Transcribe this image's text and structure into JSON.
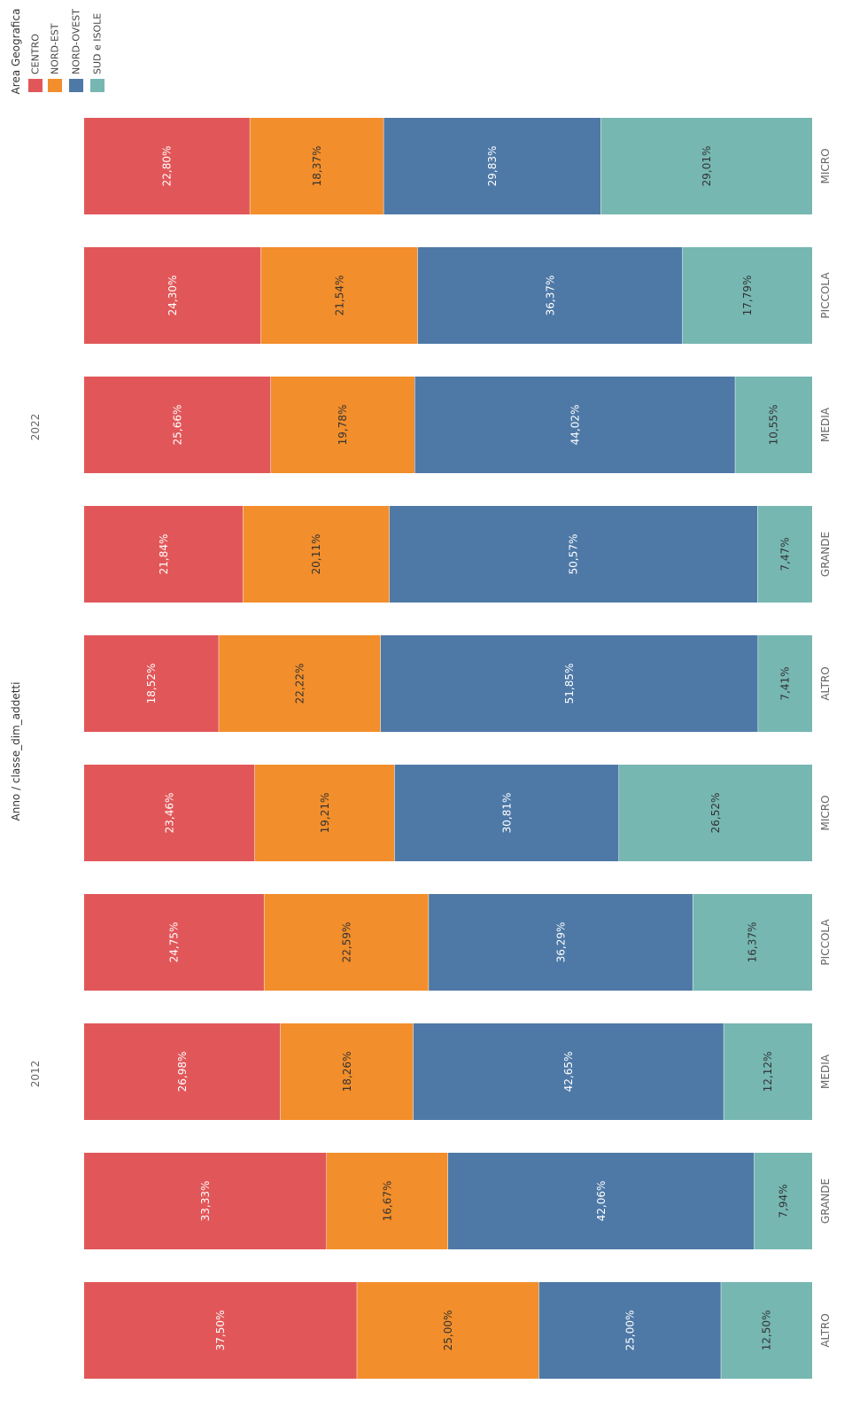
{
  "legend": {
    "title": "Area Geografica",
    "items": [
      {
        "label": "CENTRO",
        "color": "#e15759"
      },
      {
        "label": "NORD-EST",
        "color": "#f28e2b"
      },
      {
        "label": "NORD-OVEST",
        "color": "#4e79a7"
      },
      {
        "label": "SUD e ISOLE",
        "color": "#76b7b2"
      }
    ]
  },
  "chart_data": {
    "type": "bar",
    "stacked": true,
    "orientation": "rotated",
    "axis_title": "Anno  / classe_dim_addetti",
    "groups": [
      {
        "year": "2012",
        "categories": [
          "ALTRO",
          "GRANDE",
          "MEDIA",
          "PICCOLA",
          "MICRO"
        ]
      },
      {
        "year": "2022",
        "categories": [
          "ALTRO",
          "GRANDE",
          "MEDIA",
          "PICCOLA",
          "MICRO"
        ]
      }
    ],
    "series_order": [
      "CENTRO",
      "NORD-EST",
      "NORD-OVEST",
      "SUD e ISOLE"
    ],
    "bars": [
      {
        "year": "2012",
        "category": "ALTRO",
        "values": [
          37.5,
          25.0,
          25.0,
          12.5
        ],
        "labels": [
          "37,50%",
          "25,00%",
          "25,00%",
          "12,50%"
        ]
      },
      {
        "year": "2012",
        "category": "GRANDE",
        "values": [
          33.33,
          16.67,
          42.06,
          7.94
        ],
        "labels": [
          "33,33%",
          "16,67%",
          "42,06%",
          "7,94%"
        ]
      },
      {
        "year": "2012",
        "category": "MEDIA",
        "values": [
          26.98,
          18.26,
          42.65,
          12.12
        ],
        "labels": [
          "26,98%",
          "18,26%",
          "42,65%",
          "12,12%"
        ]
      },
      {
        "year": "2012",
        "category": "PICCOLA",
        "values": [
          24.75,
          22.59,
          36.29,
          16.37
        ],
        "labels": [
          "24,75%",
          "22,59%",
          "36,29%",
          "16,37%"
        ]
      },
      {
        "year": "2012",
        "category": "MICRO",
        "values": [
          23.46,
          19.21,
          30.81,
          26.52
        ],
        "labels": [
          "23,46%",
          "19,21%",
          "30,81%",
          "26,52%"
        ]
      },
      {
        "year": "2022",
        "category": "ALTRO",
        "values": [
          18.52,
          22.22,
          51.85,
          7.41
        ],
        "labels": [
          "18,52%",
          "22,22%",
          "51,85%",
          "7,41%"
        ]
      },
      {
        "year": "2022",
        "category": "GRANDE",
        "values": [
          21.84,
          20.11,
          50.57,
          7.47
        ],
        "labels": [
          "21,84%",
          "20,11%",
          "50,57%",
          "7,47%"
        ]
      },
      {
        "year": "2022",
        "category": "MEDIA",
        "values": [
          25.66,
          19.78,
          44.02,
          10.55
        ],
        "labels": [
          "25,66%",
          "19,78%",
          "44,02%",
          "10,55%"
        ]
      },
      {
        "year": "2022",
        "category": "PICCOLA",
        "values": [
          24.3,
          21.54,
          36.37,
          17.79
        ],
        "labels": [
          "24,30%",
          "21,54%",
          "36,37%",
          "17,79%"
        ]
      },
      {
        "year": "2022",
        "category": "MICRO",
        "values": [
          22.8,
          18.37,
          29.83,
          29.01
        ],
        "labels": [
          "22,80%",
          "18,37%",
          "29,83%",
          "29,01%"
        ]
      }
    ],
    "label_colors": {
      "CENTRO": "#ffffff",
      "NORD-EST": "#333333",
      "NORD-OVEST": "#ffffff",
      "SUD e ISOLE": "#333333"
    },
    "xlim": [
      0,
      100
    ]
  }
}
